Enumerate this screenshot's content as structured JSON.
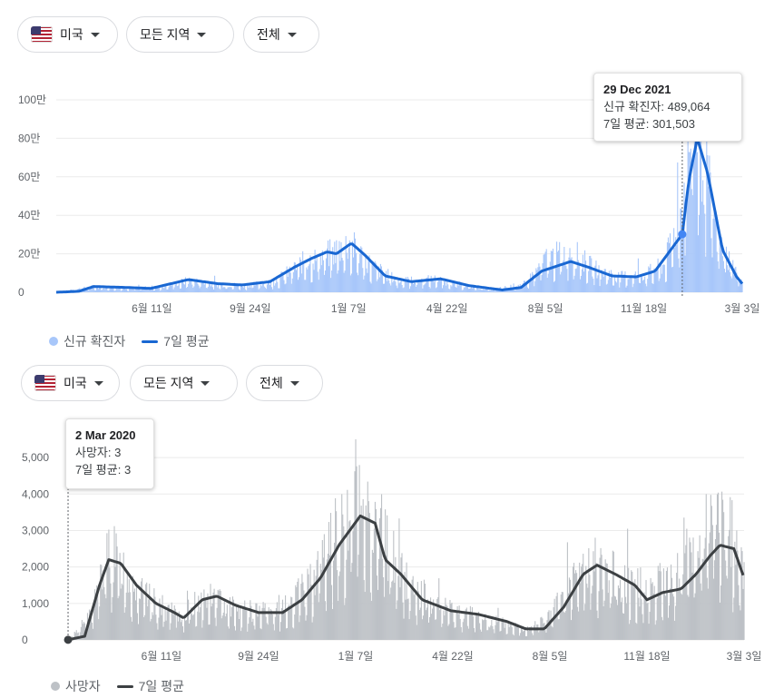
{
  "cases_panel": {
    "filters": {
      "country": "미국",
      "region": "모든 지역",
      "period": "전체"
    },
    "tooltip": {
      "date": "29 Dec 2021",
      "line1": "신규 확진자: 489,064",
      "line2": "7일 평균: 301,503"
    },
    "legend": {
      "bars": "신규 확진자",
      "line": "7일 평균"
    }
  },
  "deaths_panel": {
    "filters": {
      "country": "미국",
      "region": "모든 지역",
      "period": "전체"
    },
    "tooltip": {
      "date": "2 Mar 2020",
      "line1": "사망자: 3",
      "line2": "7일 평균: 3"
    },
    "legend": {
      "bars": "사망자",
      "line": "7일 평균"
    }
  },
  "colors": {
    "cases_bar": "#a8c7fa",
    "cases_line": "#1967d2",
    "deaths_bar": "#bdc1c6",
    "deaths_line": "#3c4043",
    "grid": "#ebebeb"
  },
  "chart_data": [
    {
      "type": "bar",
      "title": "",
      "x_tick_labels": [
        "6월 11일",
        "9월 24일",
        "1월 7일",
        "4월 22일",
        "8월 5일",
        "11월 18일",
        "3월 3일"
      ],
      "y_tick_labels": [
        "0",
        "20만",
        "40만",
        "60만",
        "80만",
        "100만"
      ],
      "ylim": [
        0,
        1000000
      ],
      "xlim": [
        "2020-03-01",
        "2022-03-03"
      ],
      "series": [
        {
          "name": "신규 확진자",
          "type": "bar",
          "points": [
            [
              "2020-03-01",
              0
            ],
            [
              "2020-04-10",
              32000
            ],
            [
              "2020-05-20",
              25000
            ],
            [
              "2020-06-20",
              30000
            ],
            [
              "2020-07-20",
              68000
            ],
            [
              "2020-08-20",
              45000
            ],
            [
              "2020-09-20",
              40000
            ],
            [
              "2020-10-20",
              62000
            ],
            [
              "2020-11-20",
              175000
            ],
            [
              "2020-12-15",
              215000
            ],
            [
              "2021-01-08",
              280000
            ],
            [
              "2021-02-01",
              150000
            ],
            [
              "2021-03-01",
              65000
            ],
            [
              "2021-04-10",
              75000
            ],
            [
              "2021-05-10",
              40000
            ],
            [
              "2021-06-10",
              15000
            ],
            [
              "2021-07-15",
              50000
            ],
            [
              "2021-08-05",
              190000
            ],
            [
              "2021-09-01",
              240000
            ],
            [
              "2021-09-25",
              140000
            ],
            [
              "2021-10-20",
              90000
            ],
            [
              "2021-11-18",
              100000
            ],
            [
              "2021-12-10",
              160000
            ],
            [
              "2021-12-29",
              489064
            ],
            [
              "2022-01-10",
              1050000
            ],
            [
              "2022-01-20",
              800000
            ],
            [
              "2022-02-05",
              300000
            ],
            [
              "2022-03-03",
              60000
            ]
          ]
        },
        {
          "name": "7일 평균",
          "type": "line",
          "points": [
            [
              "2020-03-01",
              0
            ],
            [
              "2020-03-25",
              5000
            ],
            [
              "2020-04-10",
              30000
            ],
            [
              "2020-05-15",
              25000
            ],
            [
              "2020-06-10",
              20000
            ],
            [
              "2020-07-20",
              66000
            ],
            [
              "2020-08-20",
              45000
            ],
            [
              "2020-09-15",
              38000
            ],
            [
              "2020-10-15",
              55000
            ],
            [
              "2020-11-10",
              130000
            ],
            [
              "2020-11-28",
              175000
            ],
            [
              "2020-12-15",
              210000
            ],
            [
              "2020-12-25",
              200000
            ],
            [
              "2021-01-10",
              255000
            ],
            [
              "2021-01-25",
              190000
            ],
            [
              "2021-02-15",
              85000
            ],
            [
              "2021-03-15",
              55000
            ],
            [
              "2021-04-15",
              70000
            ],
            [
              "2021-05-15",
              35000
            ],
            [
              "2021-06-20",
              12000
            ],
            [
              "2021-07-10",
              25000
            ],
            [
              "2021-08-01",
              110000
            ],
            [
              "2021-09-01",
              160000
            ],
            [
              "2021-09-20",
              130000
            ],
            [
              "2021-10-15",
              85000
            ],
            [
              "2021-11-10",
              80000
            ],
            [
              "2021-11-30",
              110000
            ],
            [
              "2021-12-29",
              301503
            ],
            [
              "2022-01-05",
              580000
            ],
            [
              "2022-01-14",
              800000
            ],
            [
              "2022-01-25",
              620000
            ],
            [
              "2022-02-10",
              220000
            ],
            [
              "2022-02-25",
              80000
            ],
            [
              "2022-03-03",
              45000
            ]
          ]
        }
      ]
    },
    {
      "type": "bar",
      "title": "",
      "x_tick_labels": [
        "6월 11일",
        "9월 24일",
        "1월 7일",
        "4월 22일",
        "8월 5일",
        "11월 18일",
        "3월 3일"
      ],
      "y_tick_labels": [
        "0",
        "1,000",
        "2,000",
        "3,000",
        "4,000",
        "5,000"
      ],
      "ylim": [
        0,
        5500
      ],
      "xlim": [
        "2020-03-01",
        "2022-03-03"
      ],
      "series": [
        {
          "name": "사망자",
          "type": "bar",
          "points": [
            [
              "2020-03-02",
              3
            ],
            [
              "2020-03-25",
              700
            ],
            [
              "2020-04-15",
              2700
            ],
            [
              "2020-05-01",
              2200
            ],
            [
              "2020-05-20",
              1400
            ],
            [
              "2020-06-11",
              1000
            ],
            [
              "2020-07-01",
              700
            ],
            [
              "2020-07-20",
              1200
            ],
            [
              "2020-08-10",
              1300
            ],
            [
              "2020-09-05",
              900
            ],
            [
              "2020-09-24",
              850
            ],
            [
              "2020-10-20",
              900
            ],
            [
              "2020-11-15",
              1600
            ],
            [
              "2020-12-10",
              3000
            ],
            [
              "2020-12-30",
              3700
            ],
            [
              "2021-01-12",
              4400
            ],
            [
              "2021-02-01",
              3500
            ],
            [
              "2021-02-15",
              2600
            ],
            [
              "2021-03-05",
              1700
            ],
            [
              "2021-04-01",
              1100
            ],
            [
              "2021-04-22",
              900
            ],
            [
              "2021-05-20",
              700
            ],
            [
              "2021-06-15",
              500
            ],
            [
              "2021-07-10",
              350
            ],
            [
              "2021-08-05",
              700
            ],
            [
              "2021-09-01",
              1900
            ],
            [
              "2021-09-25",
              2400
            ],
            [
              "2021-10-20",
              1900
            ],
            [
              "2021-11-18",
              1500
            ],
            [
              "2021-12-15",
              1900
            ],
            [
              "2022-01-10",
              3000
            ],
            [
              "2022-02-01",
              3700
            ],
            [
              "2022-02-20",
              3000
            ],
            [
              "2022-03-03",
              2300
            ]
          ]
        },
        {
          "name": "7일 평균",
          "type": "line",
          "points": [
            [
              "2020-03-02",
              3
            ],
            [
              "2020-03-20",
              100
            ],
            [
              "2020-04-05",
              1500
            ],
            [
              "2020-04-15",
              2200
            ],
            [
              "2020-04-28",
              2100
            ],
            [
              "2020-05-15",
              1500
            ],
            [
              "2020-06-05",
              1000
            ],
            [
              "2020-06-25",
              750
            ],
            [
              "2020-07-05",
              600
            ],
            [
              "2020-07-25",
              1100
            ],
            [
              "2020-08-10",
              1200
            ],
            [
              "2020-08-30",
              950
            ],
            [
              "2020-09-24",
              750
            ],
            [
              "2020-10-20",
              750
            ],
            [
              "2020-11-10",
              1100
            ],
            [
              "2020-11-30",
              1700
            ],
            [
              "2020-12-20",
              2600
            ],
            [
              "2021-01-12",
              3400
            ],
            [
              "2021-01-28",
              3200
            ],
            [
              "2021-02-08",
              2200
            ],
            [
              "2021-02-25",
              1800
            ],
            [
              "2021-03-20",
              1100
            ],
            [
              "2021-04-20",
              800
            ],
            [
              "2021-05-20",
              700
            ],
            [
              "2021-06-20",
              500
            ],
            [
              "2021-07-10",
              300
            ],
            [
              "2021-07-30",
              300
            ],
            [
              "2021-08-20",
              900
            ],
            [
              "2021-09-10",
              1800
            ],
            [
              "2021-09-25",
              2050
            ],
            [
              "2021-10-15",
              1800
            ],
            [
              "2021-11-05",
              1500
            ],
            [
              "2021-11-18",
              1100
            ],
            [
              "2021-12-05",
              1300
            ],
            [
              "2021-12-25",
              1400
            ],
            [
              "2022-01-10",
              1800
            ],
            [
              "2022-01-25",
              2300
            ],
            [
              "2022-02-05",
              2600
            ],
            [
              "2022-02-20",
              2500
            ],
            [
              "2022-03-03",
              1700
            ]
          ]
        }
      ]
    }
  ]
}
